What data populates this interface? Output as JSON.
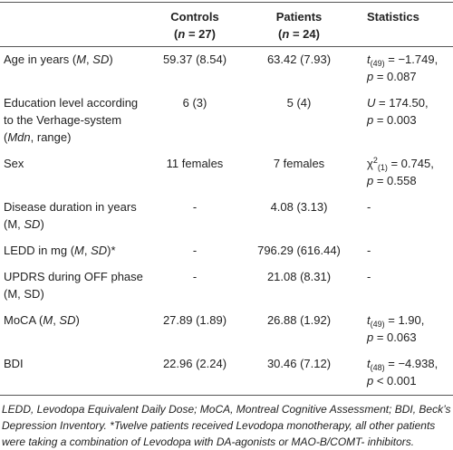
{
  "table": {
    "header": [
      [],
      [
        {
          "text": "Controls\n("
        },
        {
          "text": "n",
          "style": "italic"
        },
        {
          "text": " = 27)"
        }
      ],
      [
        {
          "text": "Patients\n("
        },
        {
          "text": "n",
          "style": "italic"
        },
        {
          "text": " = 24)"
        }
      ],
      [
        {
          "text": "Statistics"
        }
      ]
    ],
    "rows": [
      [
        [
          {
            "text": "Age in years ("
          },
          {
            "text": "M",
            "style": "italic"
          },
          {
            "text": ", "
          },
          {
            "text": "SD",
            "style": "italic"
          },
          {
            "text": ")"
          }
        ],
        [
          {
            "text": "59.37 (8.54)"
          }
        ],
        [
          {
            "text": "63.42 (7.93)"
          }
        ],
        [
          {
            "text": "t",
            "style": "italic"
          },
          {
            "text": "(49)",
            "style": "sub"
          },
          {
            "text": " = −1.749,\n"
          },
          {
            "text": "p",
            "style": "italic"
          },
          {
            "text": " = 0.087"
          }
        ]
      ],
      [
        [
          {
            "text": "Education level according to the Verhage-system ("
          },
          {
            "text": "Mdn",
            "style": "italic"
          },
          {
            "text": ", range)"
          }
        ],
        [
          {
            "text": "6 (3)"
          }
        ],
        [
          {
            "text": "5 (4)"
          }
        ],
        [
          {
            "text": "U",
            "style": "italic"
          },
          {
            "text": " = 174.50,\n"
          },
          {
            "text": "p",
            "style": "italic"
          },
          {
            "text": " = 0.003"
          }
        ]
      ],
      [
        [
          {
            "text": "Sex"
          }
        ],
        [
          {
            "text": "11 females"
          }
        ],
        [
          {
            "text": "7 females"
          }
        ],
        [
          {
            "text": "χ"
          },
          {
            "text": "2",
            "style": "sup"
          },
          {
            "text": "(1)",
            "style": "sub"
          },
          {
            "text": " = 0.745,\n"
          },
          {
            "text": "p",
            "style": "italic"
          },
          {
            "text": " = 0.558"
          }
        ]
      ],
      [
        [
          {
            "text": "Disease duration in years (M, "
          },
          {
            "text": "SD",
            "style": "italic"
          },
          {
            "text": ")"
          }
        ],
        [
          {
            "text": "-"
          }
        ],
        [
          {
            "text": "4.08 (3.13)"
          }
        ],
        [
          {
            "text": "-"
          }
        ]
      ],
      [
        [
          {
            "text": "LEDD in mg ("
          },
          {
            "text": "M",
            "style": "italic"
          },
          {
            "text": ", "
          },
          {
            "text": "SD",
            "style": "italic"
          },
          {
            "text": ")*"
          }
        ],
        [
          {
            "text": "-"
          }
        ],
        [
          {
            "text": "796.29 (616.44)"
          }
        ],
        [
          {
            "text": "-"
          }
        ]
      ],
      [
        [
          {
            "text": "UPDRS during OFF phase (M, SD)"
          }
        ],
        [
          {
            "text": "-"
          }
        ],
        [
          {
            "text": "21.08 (8.31)"
          }
        ],
        [
          {
            "text": "-"
          }
        ]
      ],
      [
        [
          {
            "text": "MoCA ("
          },
          {
            "text": "M",
            "style": "italic"
          },
          {
            "text": ", "
          },
          {
            "text": "SD",
            "style": "italic"
          },
          {
            "text": ")"
          }
        ],
        [
          {
            "text": "27.89 (1.89)"
          }
        ],
        [
          {
            "text": "26.88 (1.92)"
          }
        ],
        [
          {
            "text": "t",
            "style": "italic"
          },
          {
            "text": "(49)",
            "style": "sub"
          },
          {
            "text": " = 1.90,\n"
          },
          {
            "text": "p",
            "style": "italic"
          },
          {
            "text": " = 0.063"
          }
        ]
      ],
      [
        [
          {
            "text": "BDI"
          }
        ],
        [
          {
            "text": "22.96 (2.24)"
          }
        ],
        [
          {
            "text": "30.46 (7.12)"
          }
        ],
        [
          {
            "text": "t",
            "style": "italic"
          },
          {
            "text": "(48)",
            "style": "sub"
          },
          {
            "text": " = −4.938,\n"
          },
          {
            "text": "p",
            "style": "italic"
          },
          {
            "text": " < 0.001"
          }
        ]
      ]
    ]
  },
  "footnote": "LEDD, Levodopa Equivalent Daily Dose; MoCA, Montreal Cognitive Assessment; BDI, Beck’s Depression Inventory. *Twelve patients received Levodopa monotherapy, all other patients were taking a combination of Levodopa with DA-agonists or MAO-B/COMT- inhibitors."
}
